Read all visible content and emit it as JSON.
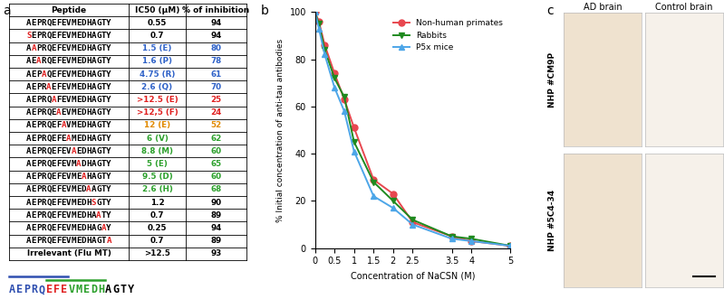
{
  "table": {
    "label": "a",
    "header": [
      "Peptide",
      "IC50 (µM)",
      "% of inhibition"
    ],
    "rows": [
      {
        "peptide": "AEPRQEFEVMEDHAGTY",
        "ic50": "0.55",
        "inhibition": 94,
        "color": "#000000"
      },
      {
        "peptide": "SEPRQEFEVMEDHAGTY",
        "ic50": "0.7",
        "inhibition": 94,
        "color": "#000000"
      },
      {
        "peptide": "AAPRQEFEVMEDHAGTY",
        "ic50": "1.5 (E)",
        "inhibition": 80,
        "color": "#2f62c8"
      },
      {
        "peptide": "AEARQEFEVMEDHAGTY",
        "ic50": "1.6 (P)",
        "inhibition": 78,
        "color": "#2f62c8"
      },
      {
        "peptide": "AEPAQEFEVMEDHAGTY",
        "ic50": "4.75 (R)",
        "inhibition": 61,
        "color": "#2f62c8"
      },
      {
        "peptide": "AEPRAEFEVMEDHAGTY",
        "ic50": "2.6 (Q)",
        "inhibition": 70,
        "color": "#2f62c8"
      },
      {
        "peptide": "AEPRQAFEVMEDHAGTY",
        "ic50": ">12.5 (E)",
        "inhibition": 25,
        "color": "#e02020"
      },
      {
        "peptide": "AEPRQEAEVMEDHAGTY",
        "ic50": ">12,5 (F)",
        "inhibition": 24,
        "color": "#e02020"
      },
      {
        "peptide": "AEPRQEFAVMEDHAGTY",
        "ic50": "12 (E)",
        "inhibition": 52,
        "color": "#e08a00"
      },
      {
        "peptide": "AEPRQEFEAMEDHAGTY",
        "ic50": "6 (V)",
        "inhibition": 62,
        "color": "#2ca02c"
      },
      {
        "peptide": "AEPRQEFEVAEDHAGTY",
        "ic50": "8.8 (M)",
        "inhibition": 60,
        "color": "#2ca02c"
      },
      {
        "peptide": "AEPRQEFEVMADHAGTY",
        "ic50": "5 (E)",
        "inhibition": 65,
        "color": "#2ca02c"
      },
      {
        "peptide": "AEPRQEFEVMEAHAGTY",
        "ic50": "9.5 (D)",
        "inhibition": 60,
        "color": "#2ca02c"
      },
      {
        "peptide": "AEPRQEFEVMEDAAGTY",
        "ic50": "2.6 (H)",
        "inhibition": 68,
        "color": "#2ca02c"
      },
      {
        "peptide": "AEPRQEFEVMEDHSGTY",
        "ic50": "1.2",
        "inhibition": 90,
        "color": "#000000"
      },
      {
        "peptide": "AEPRQEFEVMEDHAATY",
        "ic50": "0.7",
        "inhibition": 89,
        "color": "#000000"
      },
      {
        "peptide": "AEPRQEFEVMEDHAGAY",
        "ic50": "0.25",
        "inhibition": 94,
        "color": "#000000"
      },
      {
        "peptide": "AEPRQEFEVMEDHAGTA",
        "ic50": "0.7",
        "inhibition": 89,
        "color": "#000000"
      },
      {
        "peptide": "Irrelevant (Flu MT)",
        "ic50": ">12.5",
        "inhibition": 93,
        "color": "#000000"
      }
    ],
    "sequence": {
      "letters": "AEPRQEFEVMEDHAGTY",
      "colors": [
        "#2f4fb0",
        "#2f4fb0",
        "#2f4fb0",
        "#2f4fb0",
        "#2f4fb0",
        "#e02020",
        "#e02020",
        "#e02020",
        "#2ca02c",
        "#2ca02c",
        "#2ca02c",
        "#2ca02c",
        "#2ca02c",
        "#000000",
        "#000000",
        "#000000",
        "#000000"
      ],
      "epitopes": [
        {
          "start": 0,
          "end": 7,
          "color": "#2f4fb0"
        },
        {
          "start": 5,
          "end": 12,
          "color": "#2ca02c"
        }
      ]
    }
  },
  "chart_data": {
    "label": "b",
    "type": "line",
    "x_label": "Concentration of NaCSN (M)",
    "y_label": "% Initial concentration of anti-tau antibodies",
    "x": [
      0,
      0.1,
      0.25,
      0.5,
      0.75,
      1,
      1.5,
      2,
      2.5,
      3.5,
      4,
      5
    ],
    "series": [
      {
        "name": "Non-human primates",
        "color": "#e8474f",
        "marker": "o",
        "values": [
          100,
          96,
          86,
          74,
          63,
          51,
          29,
          23,
          11,
          5,
          3,
          1
        ]
      },
      {
        "name": "Rabbits",
        "color": "#1f8a1f",
        "marker": "v",
        "values": [
          100,
          95,
          84,
          72,
          64,
          45,
          28,
          20,
          12,
          5,
          4,
          1
        ]
      },
      {
        "name": "P5x mice",
        "color": "#4da6e8",
        "marker": "^",
        "values": [
          100,
          93,
          82,
          68,
          58,
          41,
          22,
          17,
          10,
          4,
          3,
          1
        ]
      }
    ],
    "xlim": [
      0,
      5
    ],
    "xticks": [
      0,
      0.5,
      1,
      1.5,
      2,
      2.5,
      3.5,
      4,
      5
    ],
    "ylim": [
      0,
      100
    ],
    "yticks": [
      0,
      20,
      40,
      60,
      80,
      100
    ],
    "legend": "upper right",
    "grid": false
  },
  "images": {
    "label": "c",
    "columns": [
      "AD brain",
      "Control brain"
    ],
    "rows": [
      "NHP #CM9P",
      "NHP #5C4-34"
    ]
  }
}
